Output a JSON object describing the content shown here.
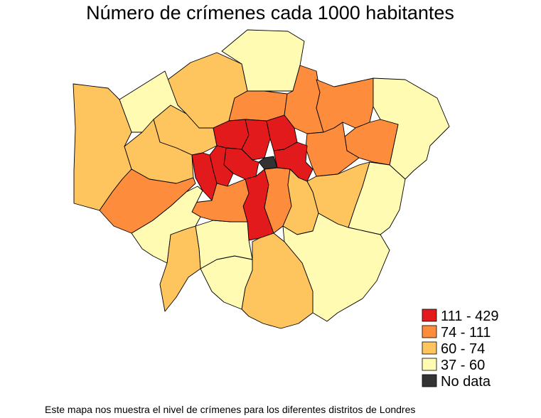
{
  "title": "Número de crímenes cada 1000 habitantes",
  "caption": "Este mapa nos muestra el nivel de crímenes para los diferentes distritos de Londres",
  "colors": {
    "c1": "#e31a1c",
    "c2": "#fd8d3c",
    "c3": "#fec55e",
    "c4": "#fffbb2",
    "nodata": "#333333"
  },
  "legend": [
    {
      "label": "111 - 429",
      "color": "#e31a1c"
    },
    {
      "label": "74 - 111",
      "color": "#fd8d3c"
    },
    {
      "label": "60 - 74",
      "color": "#fec55e"
    },
    {
      "label": "37 - 60",
      "color": "#fffbb2"
    },
    {
      "label": "No data",
      "color": "#333333"
    }
  ]
}
